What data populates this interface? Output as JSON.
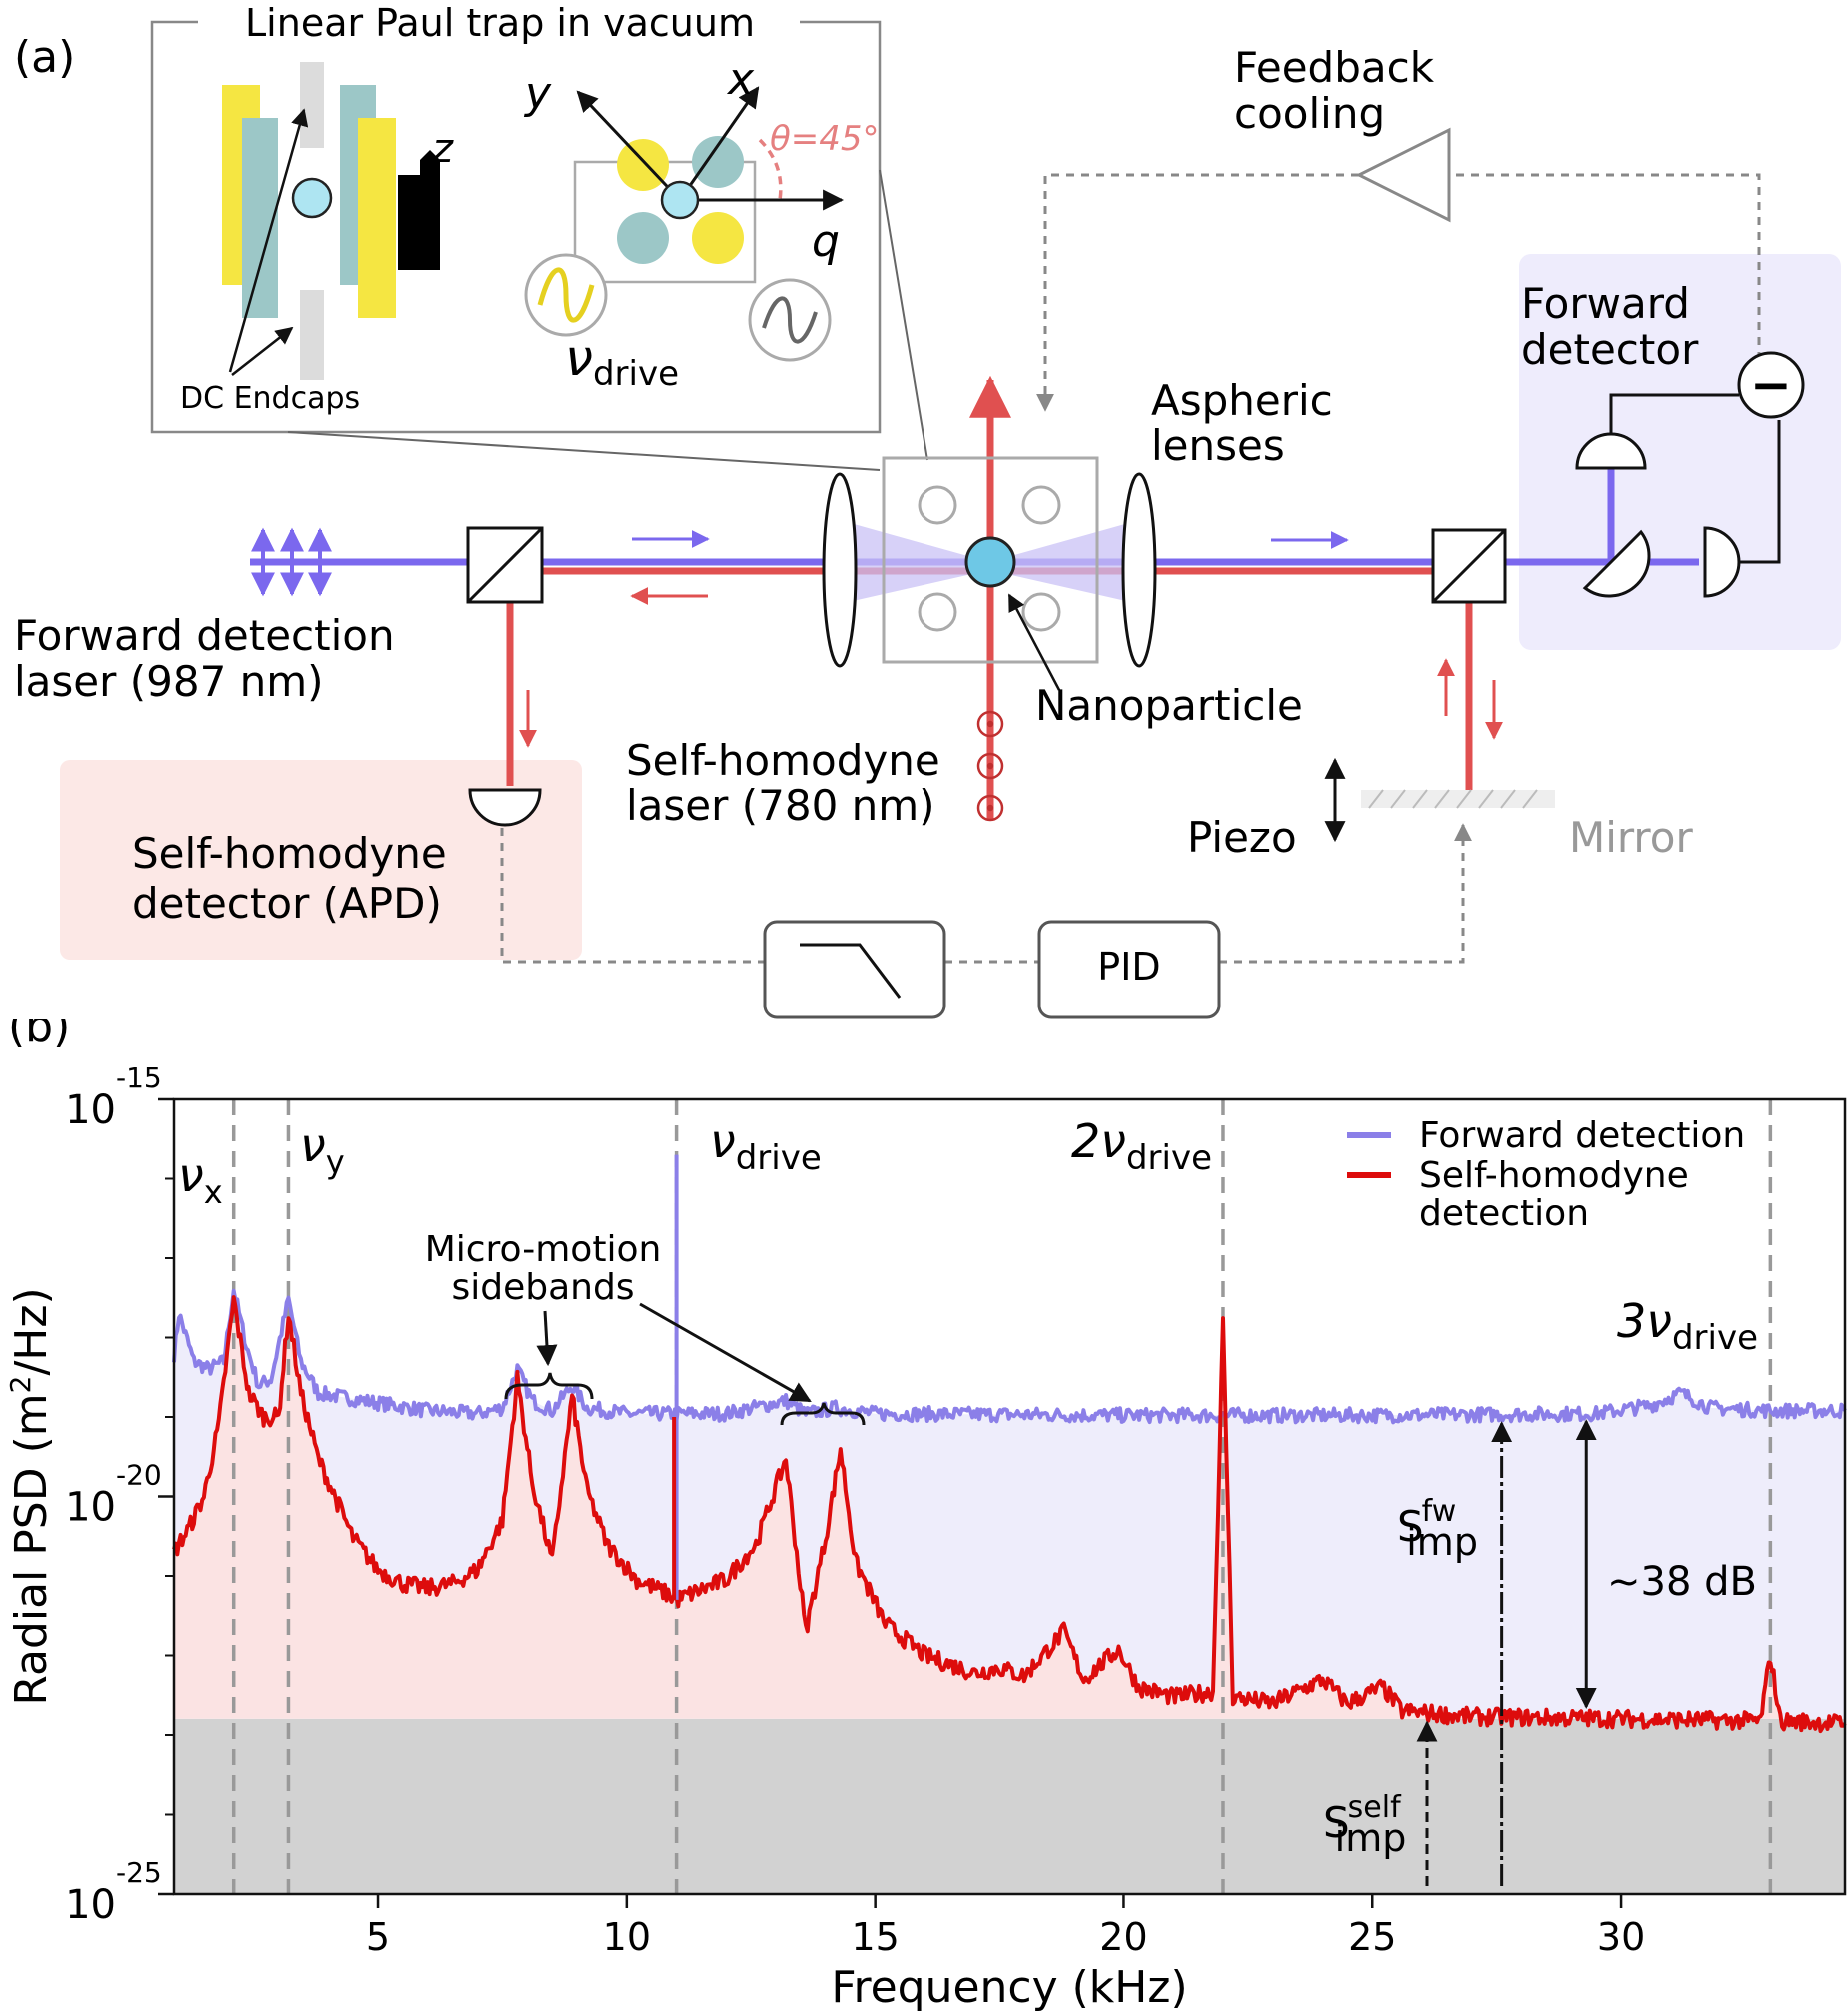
{
  "panel_a": {
    "label": "(a)",
    "trap_title": "Linear Paul trap in vacuum",
    "dc_endcaps": "DC Endcaps",
    "axis_z": "z",
    "axis_x": "x",
    "axis_y": "y",
    "axis_q": "q",
    "theta": "θ=45°",
    "nu": "ν",
    "nu_sub": "drive",
    "feedback_line1": "Feedback",
    "feedback_line2": "cooling",
    "forward_det_line1": "Forward",
    "forward_det_line2": "detector",
    "aspheric_line1": "Aspheric",
    "aspheric_line2": "lenses",
    "fw_laser_line1": "Forward detection",
    "fw_laser_line2": "laser (987 nm)",
    "nanoparticle": "Nanoparticle",
    "sh_laser_line1": "Self-homodyne",
    "sh_laser_line2": "laser (780 nm)",
    "piezo": "Piezo",
    "mirror": "Mirror",
    "sh_det_line1": "Self-homodyne",
    "sh_det_line2": "detector (APD)",
    "pid": "PID",
    "minus": "−",
    "colors": {
      "blue_beam": "#7b68ee",
      "red_beam": "#e05050",
      "yellow": "#f5e642",
      "teal": "#9cc7c7",
      "fw_box": "#eeecfc",
      "sh_box": "#fce8e6"
    }
  },
  "panel_b": {
    "label": "(b)",
    "markers": {
      "nu_x": {
        "base": "ν",
        "sub": "x"
      },
      "nu_y": {
        "base": "ν",
        "sub": "y"
      },
      "drive": {
        "base": "ν",
        "sub": "drive"
      },
      "drive2": {
        "base": "2ν",
        "sub": "drive"
      },
      "drive3": {
        "base": "3ν",
        "sub": "drive"
      }
    },
    "annot": {
      "mm_line1": "Micro-motion",
      "mm_line2": "sidebands",
      "db": "~38 dB",
      "s_fw_base": "S",
      "s_fw_sup": "fw",
      "s_fw_sub": "imp",
      "s_self_base": "S",
      "s_self_sup": "self",
      "s_self_sub": "imp"
    }
  },
  "chart_data": {
    "type": "line",
    "xlabel": "Frequency (kHz)",
    "ylabel": "Radial PSD (m²/Hz)",
    "ylabel_base": "Radial PSD (m",
    "ylabel_sup": "2",
    "ylabel_end": "/Hz)",
    "xlim": [
      0.9,
      34.5
    ],
    "ylim": [
      1e-25,
      1e-15
    ],
    "yscale": "log",
    "xticks": [
      5,
      10,
      15,
      20,
      25,
      30
    ],
    "xtick_labels": [
      "5",
      "10",
      "15",
      "20",
      "25",
      "30"
    ],
    "yticks": [
      {
        "base": "10",
        "exp": "-15",
        "value": -15
      },
      {
        "base": "10",
        "exp": "-20",
        "value": -20
      },
      {
        "base": "10",
        "exp": "-25",
        "value": -25
      }
    ],
    "yminor_exponents": [
      -24,
      -23,
      -22,
      -21,
      -19,
      -18,
      -17,
      -16
    ],
    "vlines_khz": [
      2.1,
      3.2,
      11.0,
      22.0,
      33.0
    ],
    "noise_floor": 1.6e-23,
    "legend_position": "top-right",
    "series": [
      {
        "name": "Forward detection",
        "color": "#8b7fe8",
        "points": [
          [
            0.9,
            6e-19
          ],
          [
            1.0,
            2e-18
          ],
          [
            1.3,
            5e-19
          ],
          [
            1.6,
            4e-19
          ],
          [
            1.9,
            5e-19
          ],
          [
            2.1,
            4e-18
          ],
          [
            2.35,
            8e-19
          ],
          [
            2.6,
            2.5e-19
          ],
          [
            2.85,
            3e-19
          ],
          [
            3.2,
            3e-18
          ],
          [
            3.45,
            5e-19
          ],
          [
            3.8,
            2e-19
          ],
          [
            5,
            1.5e-19
          ],
          [
            6,
            1.2e-19
          ],
          [
            7,
            1.1e-19
          ],
          [
            7.5,
            1.3e-19
          ],
          [
            7.8,
            4e-19
          ],
          [
            8.1,
            1.6e-19
          ],
          [
            8.5,
            1.2e-19
          ],
          [
            8.9,
            2.5e-19
          ],
          [
            9.2,
            1.3e-19
          ],
          [
            10,
            1.1e-19
          ],
          [
            10.8,
            1.1e-19
          ],
          [
            11.0,
            1.1e-19
          ],
          [
            12,
            1.1e-19
          ],
          [
            13.2,
            1.6e-19
          ],
          [
            13.6,
            1.1e-19
          ],
          [
            14.2,
            1.3e-19
          ],
          [
            15,
            1.1e-19
          ],
          [
            20,
            1.05e-19
          ],
          [
            25,
            1.05e-19
          ],
          [
            29.5,
            1.1e-19
          ],
          [
            30.6,
            1.4e-19
          ],
          [
            31.2,
            2e-19
          ],
          [
            31.8,
            1.3e-19
          ],
          [
            33,
            1.2e-19
          ],
          [
            34.5,
            1.2e-19
          ]
        ]
      },
      {
        "name": "Self-homodyne detection",
        "color": "#dd0c0c",
        "points": [
          [
            0.9,
            2e-21
          ],
          [
            1.2,
            4e-21
          ],
          [
            1.5,
            1e-20
          ],
          [
            1.8,
            8e-20
          ],
          [
            2.1,
            3e-18
          ],
          [
            2.4,
            2e-19
          ],
          [
            2.7,
            1e-19
          ],
          [
            3.0,
            1e-19
          ],
          [
            3.2,
            2e-18
          ],
          [
            3.45,
            2e-19
          ],
          [
            3.8,
            3e-20
          ],
          [
            4.5,
            3e-21
          ],
          [
            5,
            1.2e-21
          ],
          [
            5.5,
            8e-22
          ],
          [
            6,
            7e-22
          ],
          [
            6.5,
            8e-22
          ],
          [
            7,
            1.2e-21
          ],
          [
            7.5,
            5e-21
          ],
          [
            7.8,
            3e-19
          ],
          [
            8.1,
            1.5e-20
          ],
          [
            8.5,
            1.5e-21
          ],
          [
            8.9,
            1.8e-19
          ],
          [
            9.2,
            1.2e-20
          ],
          [
            9.6,
            2.5e-21
          ],
          [
            10.2,
            9e-22
          ],
          [
            10.8,
            6e-22
          ],
          [
            11.0,
            5e-22
          ],
          [
            11.3,
            6e-22
          ],
          [
            12,
            9e-22
          ],
          [
            12.6,
            2.5e-21
          ],
          [
            13.2,
            3e-20
          ],
          [
            13.6,
            2e-22
          ],
          [
            14.0,
            3e-21
          ],
          [
            14.3,
            4e-20
          ],
          [
            14.6,
            1.5e-21
          ],
          [
            15.2,
            2.5e-22
          ],
          [
            16,
            1e-22
          ],
          [
            17,
            6e-23
          ],
          [
            17.5,
            7e-23
          ],
          [
            18,
            5.5e-23
          ],
          [
            18.8,
            2e-22
          ],
          [
            19.2,
            5e-23
          ],
          [
            19.9,
            1.2e-22
          ],
          [
            20.3,
            4e-23
          ],
          [
            21,
            3e-23
          ],
          [
            21.8,
            3.5e-23
          ],
          [
            22.0,
            1.5e-18
          ],
          [
            22.2,
            3e-23
          ],
          [
            23,
            2.5e-23
          ],
          [
            24,
            5e-23
          ],
          [
            24.5,
            2.5e-23
          ],
          [
            25.2,
            4e-23
          ],
          [
            25.6,
            2e-23
          ],
          [
            27,
            1.7e-23
          ],
          [
            30,
            1.6e-23
          ],
          [
            32.8,
            1.5e-23
          ],
          [
            33.0,
            1e-22
          ],
          [
            33.2,
            1.5e-23
          ],
          [
            34.5,
            1.4e-23
          ]
        ]
      }
    ]
  }
}
